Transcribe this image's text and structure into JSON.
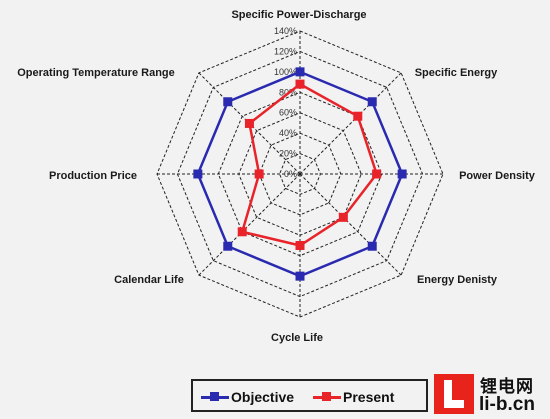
{
  "chart_data": {
    "type": "radar",
    "axes": [
      "Specific Power-Discharge",
      "Specific Energy",
      "Power Density",
      "Energy Denisty",
      "Cycle Life",
      "Calendar Life",
      "Production  Price",
      "Operating Temperature Range"
    ],
    "ticks": [
      "0%",
      "20%",
      "40%",
      "60%",
      "80%",
      "100%",
      "120%",
      "140%"
    ],
    "rlim": [
      0,
      140
    ],
    "grid": "dashed octagons",
    "series": [
      {
        "name": "Objective",
        "color": "#2a2ab0",
        "values": [
          100,
          100,
          100,
          100,
          100,
          100,
          100,
          100
        ]
      },
      {
        "name": "Present",
        "color": "#e8232a",
        "values": [
          88,
          80,
          75,
          60,
          70,
          80,
          40,
          70
        ]
      }
    ],
    "legend_position": "bottom"
  },
  "legend": {
    "objective_label": "Objective",
    "present_label": "Present"
  },
  "watermark": {
    "chinese": "锂电网",
    "url": "li-b.cn"
  }
}
